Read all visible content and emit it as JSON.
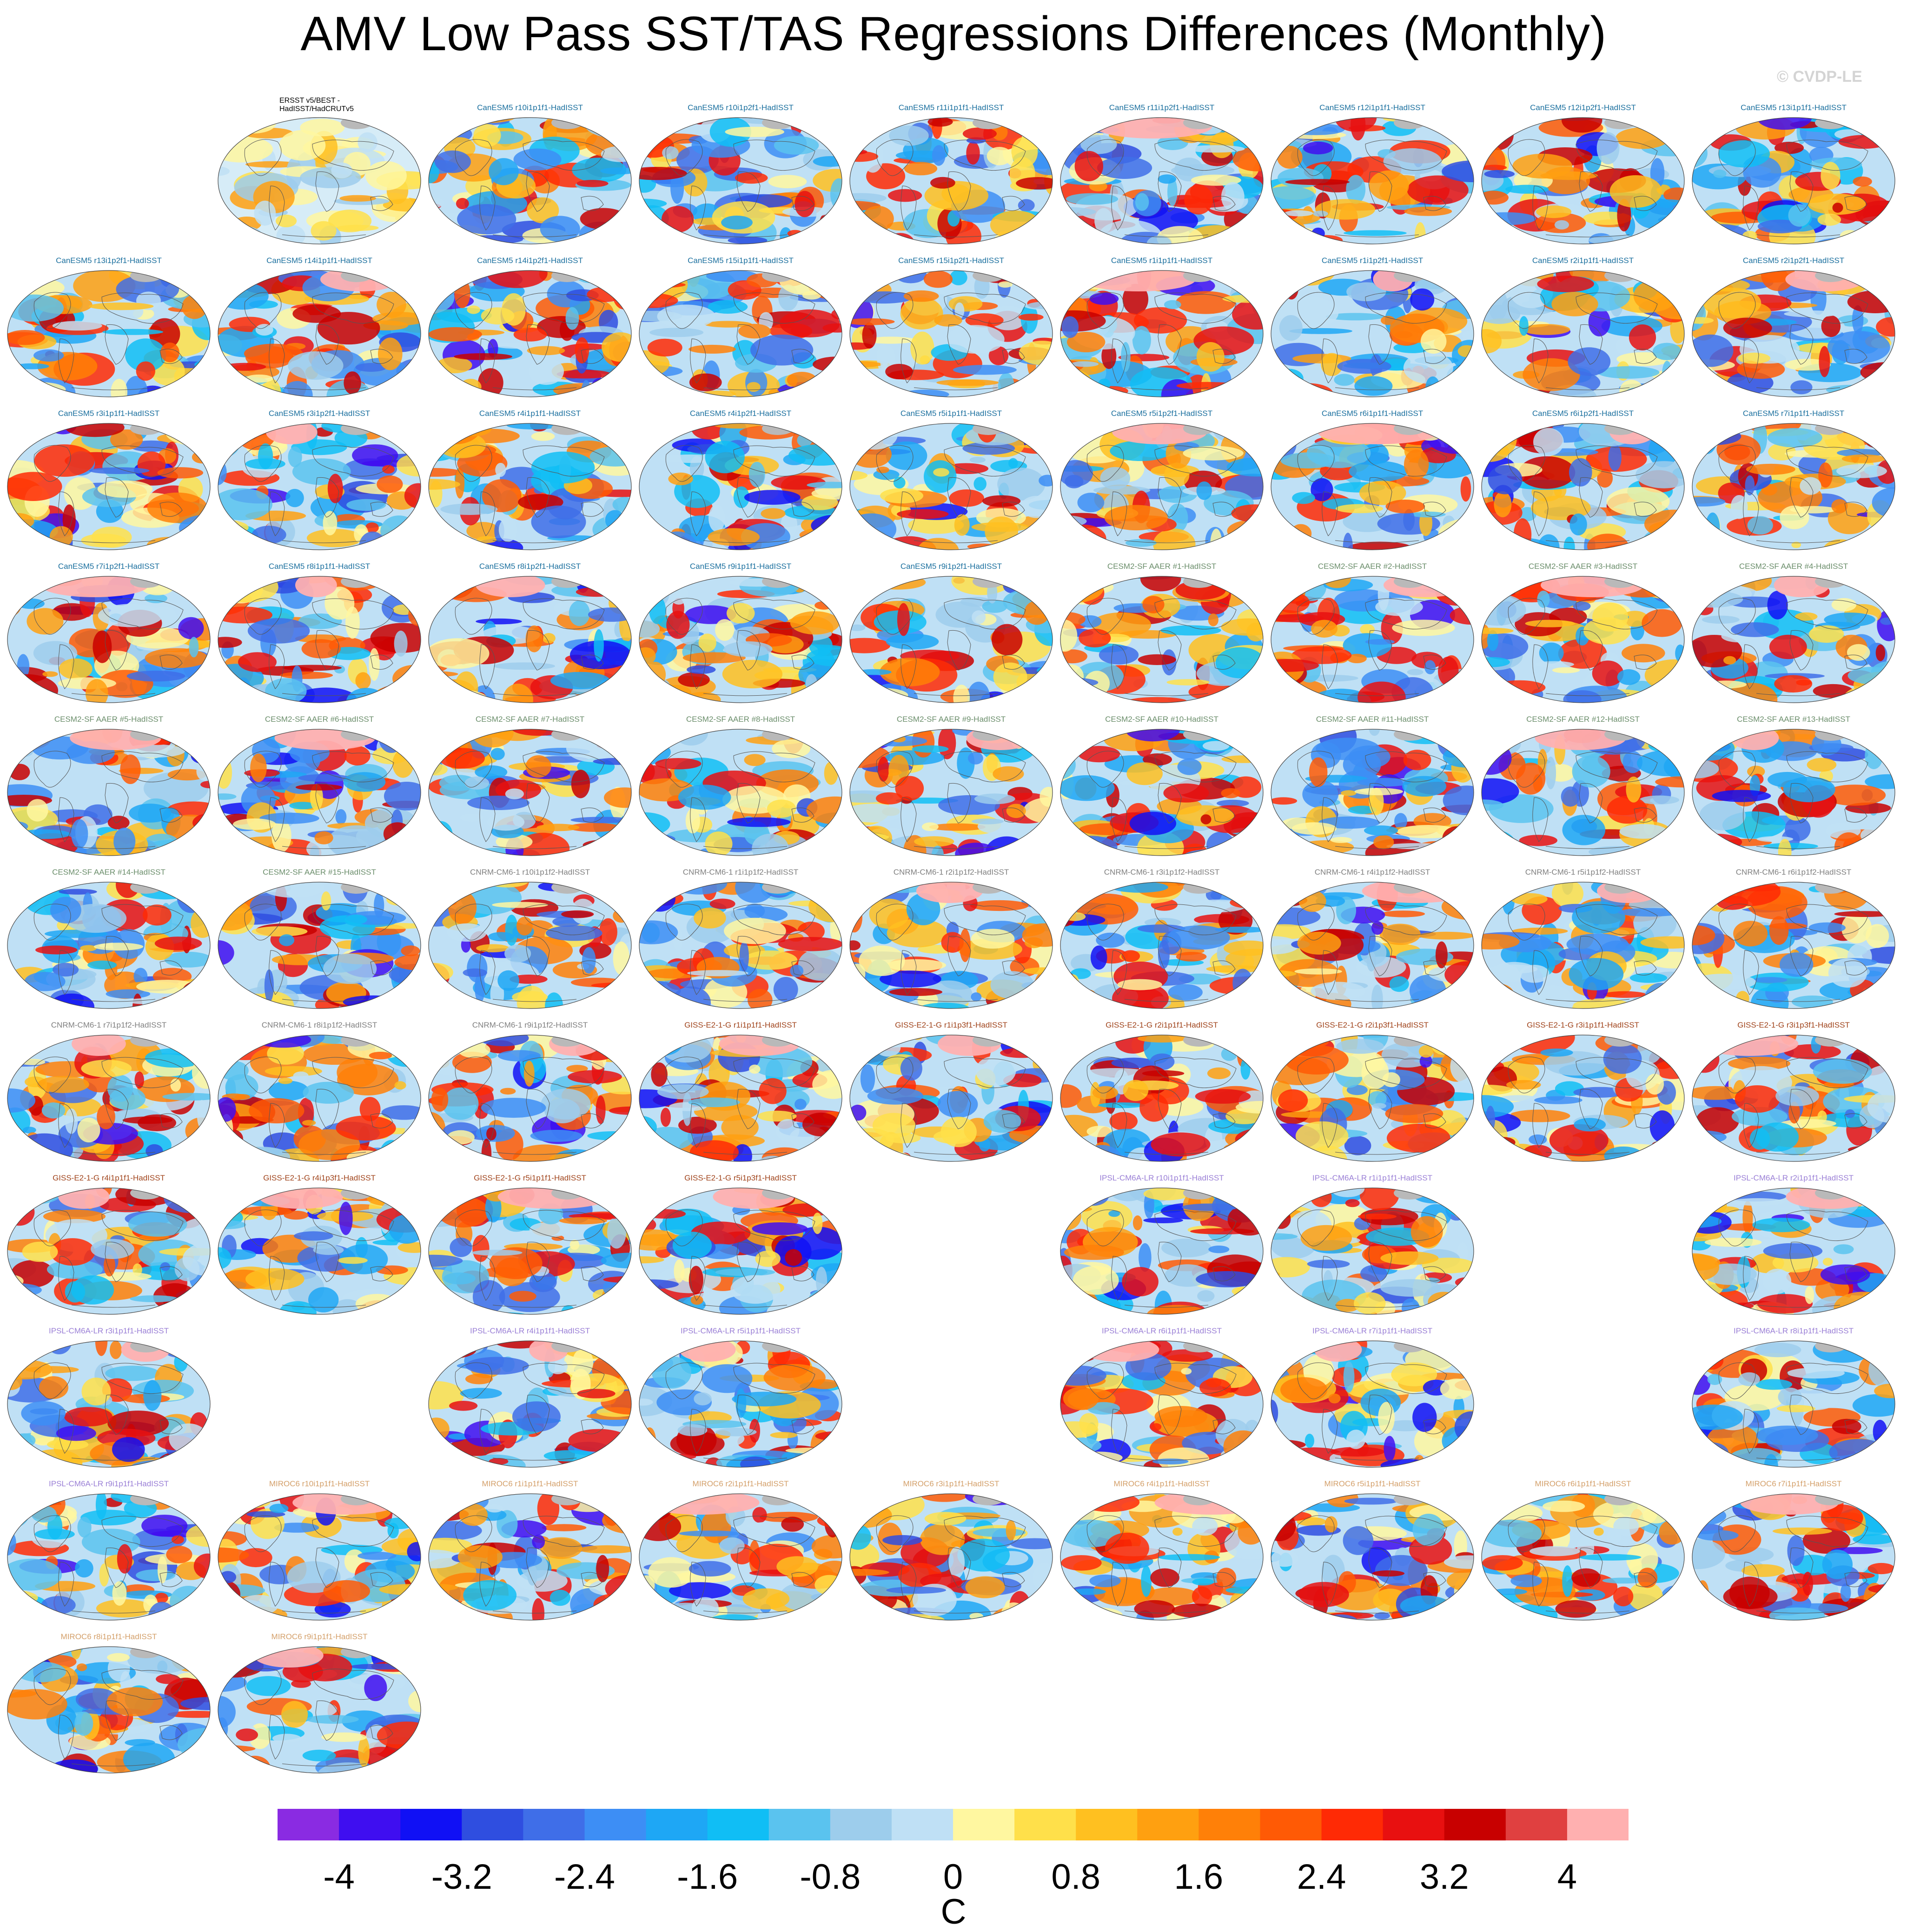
{
  "title": "AMV Low Pass SST/TAS Regressions Differences (Monthly)",
  "watermark": "© CVDP-LE",
  "colorbar": {
    "unit": "C",
    "tick_labels": [
      "-4",
      "-3.2",
      "-2.4",
      "-1.6",
      "-0.8",
      "0",
      "0.8",
      "1.6",
      "2.4",
      "3.2",
      "4"
    ],
    "colors": [
      "#8a2be2",
      "#3f0ef0",
      "#1010f5",
      "#2f4ee0",
      "#3f6ee8",
      "#3d8ef5",
      "#1ea7f5",
      "#10bef5",
      "#5ac3ef",
      "#9dcdec",
      "#bfe0f5",
      "#fff7a0",
      "#ffe04a",
      "#ffc020",
      "#ffa010",
      "#ff8008",
      "#ff5a05",
      "#ff2a05",
      "#e81010",
      "#c80000",
      "#e04040",
      "#ffb0b0"
    ]
  },
  "model_colors": {
    "obs": "#000000",
    "CanESM5": "#1a6f9e",
    "CESM2": "#6b8e6b",
    "CNRM": "#808080",
    "GISS": "#a0441c",
    "IPSL": "#9a7fd6",
    "MIROC": "#d4a06a"
  },
  "panels": [
    {
      "label": "ERSST v5/BEST -\nHadISST/HadCRUTv5",
      "group": "obs",
      "seed": 1
    },
    {
      "label": "CanESM5 r10i1p1f1-HadISST",
      "group": "CanESM5",
      "seed": 2
    },
    {
      "label": "CanESM5 r10i1p2f1-HadISST",
      "group": "CanESM5",
      "seed": 3
    },
    {
      "label": "CanESM5 r11i1p1f1-HadISST",
      "group": "CanESM5",
      "seed": 4
    },
    {
      "label": "CanESM5 r11i1p2f1-HadISST",
      "group": "CanESM5",
      "seed": 5
    },
    {
      "label": "CanESM5 r12i1p1f1-HadISST",
      "group": "CanESM5",
      "seed": 6
    },
    {
      "label": "CanESM5 r12i1p2f1-HadISST",
      "group": "CanESM5",
      "seed": 7
    },
    {
      "label": "CanESM5 r13i1p1f1-HadISST",
      "group": "CanESM5",
      "seed": 8
    },
    {
      "label": "CanESM5 r13i1p2f1-HadISST",
      "group": "CanESM5",
      "seed": 9
    },
    {
      "label": "CanESM5 r14i1p1f1-HadISST",
      "group": "CanESM5",
      "seed": 10
    },
    {
      "label": "CanESM5 r14i1p2f1-HadISST",
      "group": "CanESM5",
      "seed": 11
    },
    {
      "label": "CanESM5 r15i1p1f1-HadISST",
      "group": "CanESM5",
      "seed": 12
    },
    {
      "label": "CanESM5 r15i1p2f1-HadISST",
      "group": "CanESM5",
      "seed": 13
    },
    {
      "label": "CanESM5 r1i1p1f1-HadISST",
      "group": "CanESM5",
      "seed": 14
    },
    {
      "label": "CanESM5 r1i1p2f1-HadISST",
      "group": "CanESM5",
      "seed": 15
    },
    {
      "label": "CanESM5 r2i1p1f1-HadISST",
      "group": "CanESM5",
      "seed": 16
    },
    {
      "label": "CanESM5 r2i1p2f1-HadISST",
      "group": "CanESM5",
      "seed": 17
    },
    {
      "label": "CanESM5 r3i1p1f1-HadISST",
      "group": "CanESM5",
      "seed": 18
    },
    {
      "label": "CanESM5 r3i1p2f1-HadISST",
      "group": "CanESM5",
      "seed": 19
    },
    {
      "label": "CanESM5 r4i1p1f1-HadISST",
      "group": "CanESM5",
      "seed": 20
    },
    {
      "label": "CanESM5 r4i1p2f1-HadISST",
      "group": "CanESM5",
      "seed": 21
    },
    {
      "label": "CanESM5 r5i1p1f1-HadISST",
      "group": "CanESM5",
      "seed": 22
    },
    {
      "label": "CanESM5 r5i1p2f1-HadISST",
      "group": "CanESM5",
      "seed": 23
    },
    {
      "label": "CanESM5 r6i1p1f1-HadISST",
      "group": "CanESM5",
      "seed": 24
    },
    {
      "label": "CanESM5 r6i1p2f1-HadISST",
      "group": "CanESM5",
      "seed": 25
    },
    {
      "label": "CanESM5 r7i1p1f1-HadISST",
      "group": "CanESM5",
      "seed": 26
    },
    {
      "label": "CanESM5 r7i1p2f1-HadISST",
      "group": "CanESM5",
      "seed": 27
    },
    {
      "label": "CanESM5 r8i1p1f1-HadISST",
      "group": "CanESM5",
      "seed": 28
    },
    {
      "label": "CanESM5 r8i1p2f1-HadISST",
      "group": "CanESM5",
      "seed": 29
    },
    {
      "label": "CanESM5 r9i1p1f1-HadISST",
      "group": "CanESM5",
      "seed": 30
    },
    {
      "label": "CanESM5 r9i1p2f1-HadISST",
      "group": "CanESM5",
      "seed": 31
    },
    {
      "label": "CESM2-SF AAER #1-HadISST",
      "group": "CESM2",
      "seed": 32
    },
    {
      "label": "CESM2-SF AAER #2-HadISST",
      "group": "CESM2",
      "seed": 33
    },
    {
      "label": "CESM2-SF AAER #3-HadISST",
      "group": "CESM2",
      "seed": 34
    },
    {
      "label": "CESM2-SF AAER #4-HadISST",
      "group": "CESM2",
      "seed": 35
    },
    {
      "label": "CESM2-SF AAER #5-HadISST",
      "group": "CESM2",
      "seed": 36
    },
    {
      "label": "CESM2-SF AAER #6-HadISST",
      "group": "CESM2",
      "seed": 37
    },
    {
      "label": "CESM2-SF AAER #7-HadISST",
      "group": "CESM2",
      "seed": 38
    },
    {
      "label": "CESM2-SF AAER #8-HadISST",
      "group": "CESM2",
      "seed": 39
    },
    {
      "label": "CESM2-SF AAER #9-HadISST",
      "group": "CESM2",
      "seed": 40
    },
    {
      "label": "CESM2-SF AAER #10-HadISST",
      "group": "CESM2",
      "seed": 41
    },
    {
      "label": "CESM2-SF AAER #11-HadISST",
      "group": "CESM2",
      "seed": 42
    },
    {
      "label": "CESM2-SF AAER #12-HadISST",
      "group": "CESM2",
      "seed": 43
    },
    {
      "label": "CESM2-SF AAER #13-HadISST",
      "group": "CESM2",
      "seed": 44
    },
    {
      "label": "CESM2-SF AAER #14-HadISST",
      "group": "CESM2",
      "seed": 45
    },
    {
      "label": "CESM2-SF AAER #15-HadISST",
      "group": "CESM2",
      "seed": 46
    },
    {
      "label": "CNRM-CM6-1 r10i1p1f2-HadISST",
      "group": "CNRM",
      "seed": 47
    },
    {
      "label": "CNRM-CM6-1 r1i1p1f2-HadISST",
      "group": "CNRM",
      "seed": 48
    },
    {
      "label": "CNRM-CM6-1 r2i1p1f2-HadISST",
      "group": "CNRM",
      "seed": 49
    },
    {
      "label": "CNRM-CM6-1 r3i1p1f2-HadISST",
      "group": "CNRM",
      "seed": 50
    },
    {
      "label": "CNRM-CM6-1 r4i1p1f2-HadISST",
      "group": "CNRM",
      "seed": 51
    },
    {
      "label": "CNRM-CM6-1 r5i1p1f2-HadISST",
      "group": "CNRM",
      "seed": 52
    },
    {
      "label": "CNRM-CM6-1 r6i1p1f2-HadISST",
      "group": "CNRM",
      "seed": 53
    },
    {
      "label": "CNRM-CM6-1 r7i1p1f2-HadISST",
      "group": "CNRM",
      "seed": 54
    },
    {
      "label": "CNRM-CM6-1 r8i1p1f2-HadISST",
      "group": "CNRM",
      "seed": 55
    },
    {
      "label": "CNRM-CM6-1 r9i1p1f2-HadISST",
      "group": "CNRM",
      "seed": 56
    },
    {
      "label": "GISS-E2-1-G r1i1p1f1-HadISST",
      "group": "GISS",
      "seed": 57
    },
    {
      "label": "GISS-E2-1-G r1i1p3f1-HadISST",
      "group": "GISS",
      "seed": 58
    },
    {
      "label": "GISS-E2-1-G r2i1p1f1-HadISST",
      "group": "GISS",
      "seed": 59
    },
    {
      "label": "GISS-E2-1-G r2i1p3f1-HadISST",
      "group": "GISS",
      "seed": 60
    },
    {
      "label": "GISS-E2-1-G r3i1p1f1-HadISST",
      "group": "GISS",
      "seed": 61
    },
    {
      "label": "GISS-E2-1-G r3i1p3f1-HadISST",
      "group": "GISS",
      "seed": 62
    },
    {
      "label": "GISS-E2-1-G r4i1p1f1-HadISST",
      "group": "GISS",
      "seed": 63
    },
    {
      "label": "GISS-E2-1-G r4i1p3f1-HadISST",
      "group": "GISS",
      "seed": 64
    },
    {
      "label": "GISS-E2-1-G r5i1p1f1-HadISST",
      "group": "GISS",
      "seed": 65
    },
    {
      "label": "GISS-E2-1-G r5i1p3f1-HadISST",
      "group": "GISS",
      "seed": 66
    },
    {
      "label": "IPSL-CM6A-LR r10i1p1f1-HadISST",
      "group": "IPSL",
      "seed": 67
    },
    {
      "label": "IPSL-CM6A-LR r1i1p1f1-HadISST",
      "group": "IPSL",
      "seed": 68
    },
    {
      "label": "IPSL-CM6A-LR r2i1p1f1-HadISST",
      "group": "IPSL",
      "seed": 69
    },
    {
      "label": "IPSL-CM6A-LR r3i1p1f1-HadISST",
      "group": "IPSL",
      "seed": 70
    },
    {
      "label": "IPSL-CM6A-LR r4i1p1f1-HadISST",
      "group": "IPSL",
      "seed": 71
    },
    {
      "label": "IPSL-CM6A-LR r5i1p1f1-HadISST",
      "group": "IPSL",
      "seed": 72
    },
    {
      "label": "IPSL-CM6A-LR r6i1p1f1-HadISST",
      "group": "IPSL",
      "seed": 73
    },
    {
      "label": "IPSL-CM6A-LR r7i1p1f1-HadISST",
      "group": "IPSL",
      "seed": 74
    },
    {
      "label": "IPSL-CM6A-LR r8i1p1f1-HadISST",
      "group": "IPSL",
      "seed": 75
    },
    {
      "label": "IPSL-CM6A-LR r9i1p1f1-HadISST",
      "group": "IPSL",
      "seed": 76
    },
    {
      "label": "MIROC6 r10i1p1f1-HadISST",
      "group": "MIROC",
      "seed": 77
    },
    {
      "label": "MIROC6 r1i1p1f1-HadISST",
      "group": "MIROC",
      "seed": 78
    },
    {
      "label": "MIROC6 r2i1p1f1-HadISST",
      "group": "MIROC",
      "seed": 79
    },
    {
      "label": "MIROC6 r3i1p1f1-HadISST",
      "group": "MIROC",
      "seed": 80
    },
    {
      "label": "MIROC6 r4i1p1f1-HadISST",
      "group": "MIROC",
      "seed": 81
    },
    {
      "label": "MIROC6 r5i1p1f1-HadISST",
      "group": "MIROC",
      "seed": 82
    },
    {
      "label": "MIROC6 r6i1p1f1-HadISST",
      "group": "MIROC",
      "seed": 83
    },
    {
      "label": "MIROC6 r7i1p1f1-HadISST",
      "group": "MIROC",
      "seed": 84
    },
    {
      "label": "MIROC6 r8i1p1f1-HadISST",
      "group": "MIROC",
      "seed": 85
    },
    {
      "label": "MIROC6 r9i1p1f1-HadISST",
      "group": "MIROC",
      "seed": 86
    }
  ]
}
